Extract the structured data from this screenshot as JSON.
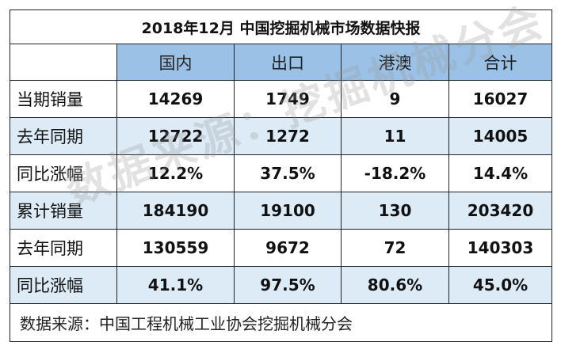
{
  "title": "2018年12月  中国挖掘机械市场数据快报",
  "columns": [
    "国内",
    "出口",
    "港澳",
    "合计"
  ],
  "rows": [
    {
      "label": "当期销量",
      "values": [
        "14269",
        "1749",
        "9",
        "16027"
      ]
    },
    {
      "label": "去年同期",
      "values": [
        "12722",
        "1272",
        "11",
        "14005"
      ]
    },
    {
      "label": "同比涨幅",
      "values": [
        "12.2%",
        "37.5%",
        "-18.2%",
        "14.4%"
      ]
    },
    {
      "label": "累计销量",
      "values": [
        "184190",
        "19100",
        "130",
        "203420"
      ]
    },
    {
      "label": "去年同期",
      "values": [
        "130559",
        "9672",
        "72",
        "140303"
      ]
    },
    {
      "label": "同比涨幅",
      "values": [
        "41.1%",
        "97.5%",
        "80.6%",
        "45.0%"
      ]
    }
  ],
  "source": "数据来源：中国工程机械工业协会挖掘机械分会",
  "watermark": "数据来源：挖掘机械分会"
}
